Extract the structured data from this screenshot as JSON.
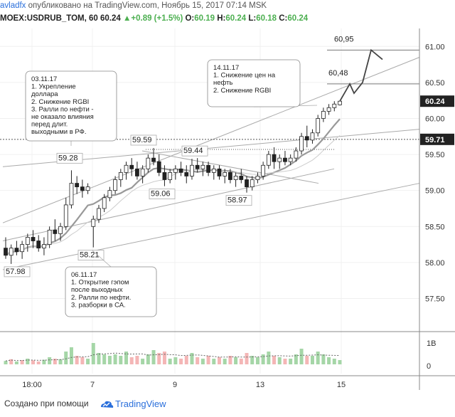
{
  "header": {
    "author": "avladfx",
    "published": "опубликовано на TradingView.com, Ноябрь 15, 2017 07:14 MSK",
    "symbol": "MOEX:USDRUB_TOM, 60",
    "last": "60.24",
    "change": "+0.89 (+1.5%)",
    "o_label": "O:",
    "o": "60.19",
    "h_label": "H:",
    "h": "60.24",
    "l_label": "L:",
    "l": "60.18",
    "c_label": "C:",
    "c": "60.24"
  },
  "footer": {
    "made_with": "Создано при помощи",
    "brand": "TradingView"
  },
  "colors": {
    "accent_blue": "#2a6fdb",
    "up_green": "#4caf50",
    "candle": "#222222",
    "ma": "#999999",
    "trend": "#aaaaaa",
    "price_tag_bg": "#222222",
    "vol_up": "#a5d6a7",
    "vol_down": "#f4b6b6"
  },
  "chart_data": {
    "type": "candlestick",
    "y_axis": {
      "ticks": [
        "61.00",
        "60.50",
        "60.00",
        "59.50",
        "59.00",
        "58.50",
        "58.00",
        "57.50"
      ],
      "tick_values": [
        61.0,
        60.5,
        60.0,
        59.5,
        59.0,
        58.5,
        58.0,
        57.5
      ],
      "ylim": [
        57.05,
        61.25
      ],
      "last_price_tag": "60.24",
      "last_price": 60.24,
      "level_tag": "59.71",
      "level": 59.71
    },
    "x_axis": {
      "ticks": [
        "18:00",
        "7",
        "9",
        "13",
        "15"
      ]
    },
    "volume_axis": {
      "ticks": [
        "1B",
        "0"
      ]
    },
    "price_labels": [
      {
        "text": "57.98",
        "value": 57.98
      },
      {
        "text": "58.21",
        "value": 58.21
      },
      {
        "text": "59.28",
        "value": 59.28
      },
      {
        "text": "59.59",
        "value": 59.59
      },
      {
        "text": "59.06",
        "value": 59.06
      },
      {
        "text": "59.44",
        "value": 59.44
      },
      {
        "text": "58.97",
        "value": 58.97
      },
      {
        "text": "60,48",
        "value": 60.48
      },
      {
        "text": "60,95",
        "value": 60.95
      }
    ],
    "annotations": [
      {
        "name": "note-03-11",
        "lines": [
          "03.11.17",
          "1. Укрепление",
          "доллара",
          "2. Снижение RGBI",
          "3. Ралли по нефти -",
          "не оказало влияния",
          "перед длит.",
          "выходными в РФ."
        ]
      },
      {
        "name": "note-06-11",
        "lines": [
          "06.11.17",
          "1. Открытие гэпом",
          "после выходных",
          "2. Ралли по нефти.",
          "3. разборки в СА."
        ]
      },
      {
        "name": "note-14-11",
        "lines": [
          "14.11.17",
          "1. Снижение цен на",
          "нефть",
          "2. Снижение RGBI"
        ]
      }
    ],
    "forecast_path": [
      60.24,
      60.48,
      60.35,
      60.5,
      60.95,
      60.82
    ],
    "candles": [
      [
        58.2,
        58.35,
        58.05,
        58.1
      ],
      [
        58.1,
        58.25,
        57.98,
        58.2
      ],
      [
        58.2,
        58.3,
        58.1,
        58.15
      ],
      [
        58.15,
        58.3,
        58.05,
        58.25
      ],
      [
        58.25,
        58.4,
        58.15,
        58.35
      ],
      [
        58.35,
        58.45,
        58.2,
        58.3
      ],
      [
        58.3,
        58.38,
        58.15,
        58.2
      ],
      [
        58.2,
        58.35,
        58.1,
        58.25
      ],
      [
        58.25,
        58.5,
        58.2,
        58.45
      ],
      [
        58.45,
        58.6,
        58.3,
        58.4
      ],
      [
        58.4,
        58.55,
        58.3,
        58.5
      ],
      [
        58.5,
        58.9,
        58.45,
        58.8
      ],
      [
        58.8,
        59.28,
        58.75,
        59.1
      ],
      [
        59.1,
        59.2,
        58.95,
        59.05
      ],
      [
        59.05,
        59.15,
        58.9,
        59.0
      ],
      [
        59.0,
        59.1,
        58.95,
        59.05
      ],
      [
        58.5,
        58.65,
        58.21,
        58.6
      ],
      [
        58.6,
        58.8,
        58.55,
        58.75
      ],
      [
        58.75,
        58.95,
        58.7,
        58.9
      ],
      [
        58.9,
        59.05,
        58.85,
        59.0
      ],
      [
        59.0,
        59.2,
        58.95,
        59.15
      ],
      [
        59.15,
        59.3,
        59.05,
        59.25
      ],
      [
        59.25,
        59.4,
        59.15,
        59.35
      ],
      [
        59.35,
        59.45,
        59.2,
        59.3
      ],
      [
        59.3,
        59.4,
        59.15,
        59.2
      ],
      [
        59.2,
        59.35,
        59.1,
        59.3
      ],
      [
        59.3,
        59.5,
        59.25,
        59.45
      ],
      [
        59.45,
        59.59,
        59.35,
        59.4
      ],
      [
        59.4,
        59.5,
        59.2,
        59.25
      ],
      [
        59.25,
        59.35,
        59.06,
        59.15
      ],
      [
        59.15,
        59.3,
        59.1,
        59.25
      ],
      [
        59.25,
        59.35,
        59.15,
        59.3
      ],
      [
        59.3,
        59.4,
        59.2,
        59.25
      ],
      [
        59.25,
        59.35,
        59.1,
        59.2
      ],
      [
        59.2,
        59.44,
        59.15,
        59.35
      ],
      [
        59.35,
        59.45,
        59.25,
        59.3
      ],
      [
        59.3,
        59.4,
        59.2,
        59.35
      ],
      [
        59.35,
        59.4,
        59.2,
        59.25
      ],
      [
        59.25,
        59.35,
        59.15,
        59.3
      ],
      [
        59.3,
        59.35,
        59.15,
        59.2
      ],
      [
        59.2,
        59.3,
        59.1,
        59.25
      ],
      [
        59.25,
        59.3,
        59.1,
        59.15
      ],
      [
        59.15,
        59.25,
        59.05,
        59.2
      ],
      [
        59.2,
        59.3,
        59.1,
        59.15
      ],
      [
        59.15,
        59.2,
        58.97,
        59.05
      ],
      [
        59.05,
        59.2,
        59.0,
        59.15
      ],
      [
        59.15,
        59.25,
        59.1,
        59.2
      ],
      [
        59.2,
        59.4,
        59.15,
        59.35
      ],
      [
        59.35,
        59.55,
        59.3,
        59.5
      ],
      [
        59.5,
        59.6,
        59.3,
        59.4
      ],
      [
        59.4,
        59.5,
        59.3,
        59.45
      ],
      [
        59.45,
        59.55,
        59.35,
        59.4
      ],
      [
        59.4,
        59.5,
        59.35,
        59.45
      ],
      [
        59.45,
        59.6,
        59.4,
        59.55
      ],
      [
        59.55,
        59.8,
        59.5,
        59.75
      ],
      [
        59.75,
        59.9,
        59.6,
        59.7
      ],
      [
        59.7,
        59.85,
        59.65,
        59.8
      ],
      [
        59.8,
        60.05,
        59.75,
        60.0
      ],
      [
        60.0,
        60.15,
        59.95,
        60.1
      ],
      [
        60.1,
        60.2,
        60.05,
        60.15
      ],
      [
        60.15,
        60.24,
        60.1,
        60.2
      ],
      [
        60.19,
        60.24,
        60.18,
        60.24
      ]
    ],
    "volume": [
      [
        0.12,
        "u"
      ],
      [
        0.18,
        "d"
      ],
      [
        0.1,
        "u"
      ],
      [
        0.15,
        "d"
      ],
      [
        0.2,
        "u"
      ],
      [
        0.14,
        "d"
      ],
      [
        0.1,
        "d"
      ],
      [
        0.16,
        "u"
      ],
      [
        0.25,
        "u"
      ],
      [
        0.2,
        "d"
      ],
      [
        0.18,
        "u"
      ],
      [
        0.45,
        "u"
      ],
      [
        0.6,
        "u"
      ],
      [
        0.3,
        "d"
      ],
      [
        0.25,
        "d"
      ],
      [
        0.2,
        "u"
      ],
      [
        0.75,
        "u"
      ],
      [
        0.4,
        "u"
      ],
      [
        0.35,
        "u"
      ],
      [
        0.3,
        "u"
      ],
      [
        0.35,
        "u"
      ],
      [
        0.3,
        "u"
      ],
      [
        0.45,
        "u"
      ],
      [
        0.25,
        "d"
      ],
      [
        0.3,
        "d"
      ],
      [
        0.2,
        "u"
      ],
      [
        0.35,
        "u"
      ],
      [
        0.5,
        "u"
      ],
      [
        0.4,
        "d"
      ],
      [
        0.45,
        "d"
      ],
      [
        0.2,
        "u"
      ],
      [
        0.25,
        "u"
      ],
      [
        0.2,
        "d"
      ],
      [
        0.3,
        "d"
      ],
      [
        0.4,
        "u"
      ],
      [
        0.25,
        "d"
      ],
      [
        0.2,
        "u"
      ],
      [
        0.3,
        "d"
      ],
      [
        0.2,
        "u"
      ],
      [
        0.25,
        "d"
      ],
      [
        0.2,
        "u"
      ],
      [
        0.3,
        "d"
      ],
      [
        0.25,
        "u"
      ],
      [
        0.2,
        "d"
      ],
      [
        0.4,
        "d"
      ],
      [
        0.3,
        "u"
      ],
      [
        0.25,
        "u"
      ],
      [
        0.35,
        "u"
      ],
      [
        0.45,
        "u"
      ],
      [
        0.3,
        "d"
      ],
      [
        0.25,
        "u"
      ],
      [
        0.2,
        "d"
      ],
      [
        0.2,
        "u"
      ],
      [
        0.35,
        "u"
      ],
      [
        0.55,
        "u"
      ],
      [
        0.3,
        "d"
      ],
      [
        0.3,
        "u"
      ],
      [
        0.45,
        "u"
      ],
      [
        0.35,
        "u"
      ],
      [
        0.25,
        "u"
      ],
      [
        0.2,
        "u"
      ],
      [
        0.15,
        "u"
      ]
    ]
  }
}
